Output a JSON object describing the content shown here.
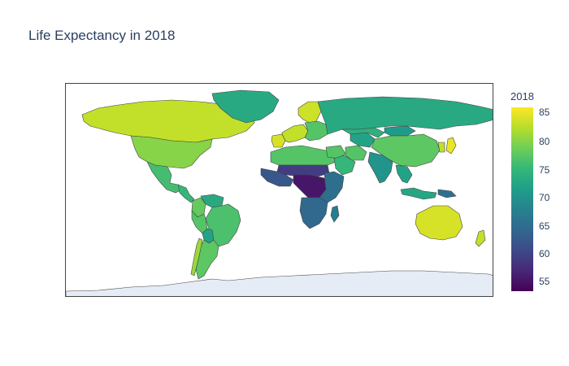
{
  "title": "Life Expectancy in 2018",
  "colorbar": {
    "title": "2018",
    "ticks": [
      "85",
      "80",
      "75",
      "70",
      "65",
      "60",
      "55"
    ],
    "scale": "Viridis",
    "colors": [
      "#440154",
      "#482878",
      "#3e4989",
      "#31688e",
      "#26828e",
      "#1f9e89",
      "#35b779",
      "#6ece58",
      "#b5de2b",
      "#fde725"
    ]
  },
  "map": {
    "type": "choropleth",
    "projection": "equirectangular",
    "metric": "life expectancy",
    "year": 2018,
    "ocean_color": "#ffffff",
    "land_no_data_color": "#e5ecf6",
    "border_color": "#444444",
    "regions": [
      {
        "name": "Canada",
        "value": 82
      },
      {
        "name": "United States",
        "value": 79
      },
      {
        "name": "Greenland",
        "value": 72
      },
      {
        "name": "Mexico",
        "value": 75
      },
      {
        "name": "Central America",
        "value": 74
      },
      {
        "name": "Colombia",
        "value": 77
      },
      {
        "name": "Venezuela",
        "value": 72
      },
      {
        "name": "Brazil",
        "value": 75.5
      },
      {
        "name": "Peru",
        "value": 76
      },
      {
        "name": "Bolivia",
        "value": 71
      },
      {
        "name": "Argentina",
        "value": 76.5
      },
      {
        "name": "Chile",
        "value": 80
      },
      {
        "name": "Western Europe",
        "value": 82
      },
      {
        "name": "Iberia",
        "value": 83
      },
      {
        "name": "Scandinavia",
        "value": 82.5
      },
      {
        "name": "Eastern Europe",
        "value": 76
      },
      {
        "name": "Russia",
        "value": 72
      },
      {
        "name": "North Africa",
        "value": 76
      },
      {
        "name": "Sahel",
        "value": 58
      },
      {
        "name": "West Africa",
        "value": 61
      },
      {
        "name": "Central Africa",
        "value": 54
      },
      {
        "name": "East Africa",
        "value": 64
      },
      {
        "name": "Southern Africa",
        "value": 63
      },
      {
        "name": "Madagascar",
        "value": 66
      },
      {
        "name": "Middle East",
        "value": 76
      },
      {
        "name": "Arabian Peninsula",
        "value": 74
      },
      {
        "name": "Iran",
        "value": 76
      },
      {
        "name": "Central Asia",
        "value": 71
      },
      {
        "name": "Kazakhstan",
        "value": 73
      },
      {
        "name": "Mongolia",
        "value": 70
      },
      {
        "name": "China",
        "value": 76.5
      },
      {
        "name": "India",
        "value": 69
      },
      {
        "name": "Southeast Asia",
        "value": 71
      },
      {
        "name": "Indonesia",
        "value": 71.5
      },
      {
        "name": "Papua New Guinea",
        "value": 64
      },
      {
        "name": "Japan",
        "value": 84
      },
      {
        "name": "Korea",
        "value": 82
      },
      {
        "name": "Australia",
        "value": 83
      },
      {
        "name": "New Zealand",
        "value": 82
      },
      {
        "name": "Antarctica",
        "value": null
      }
    ]
  }
}
